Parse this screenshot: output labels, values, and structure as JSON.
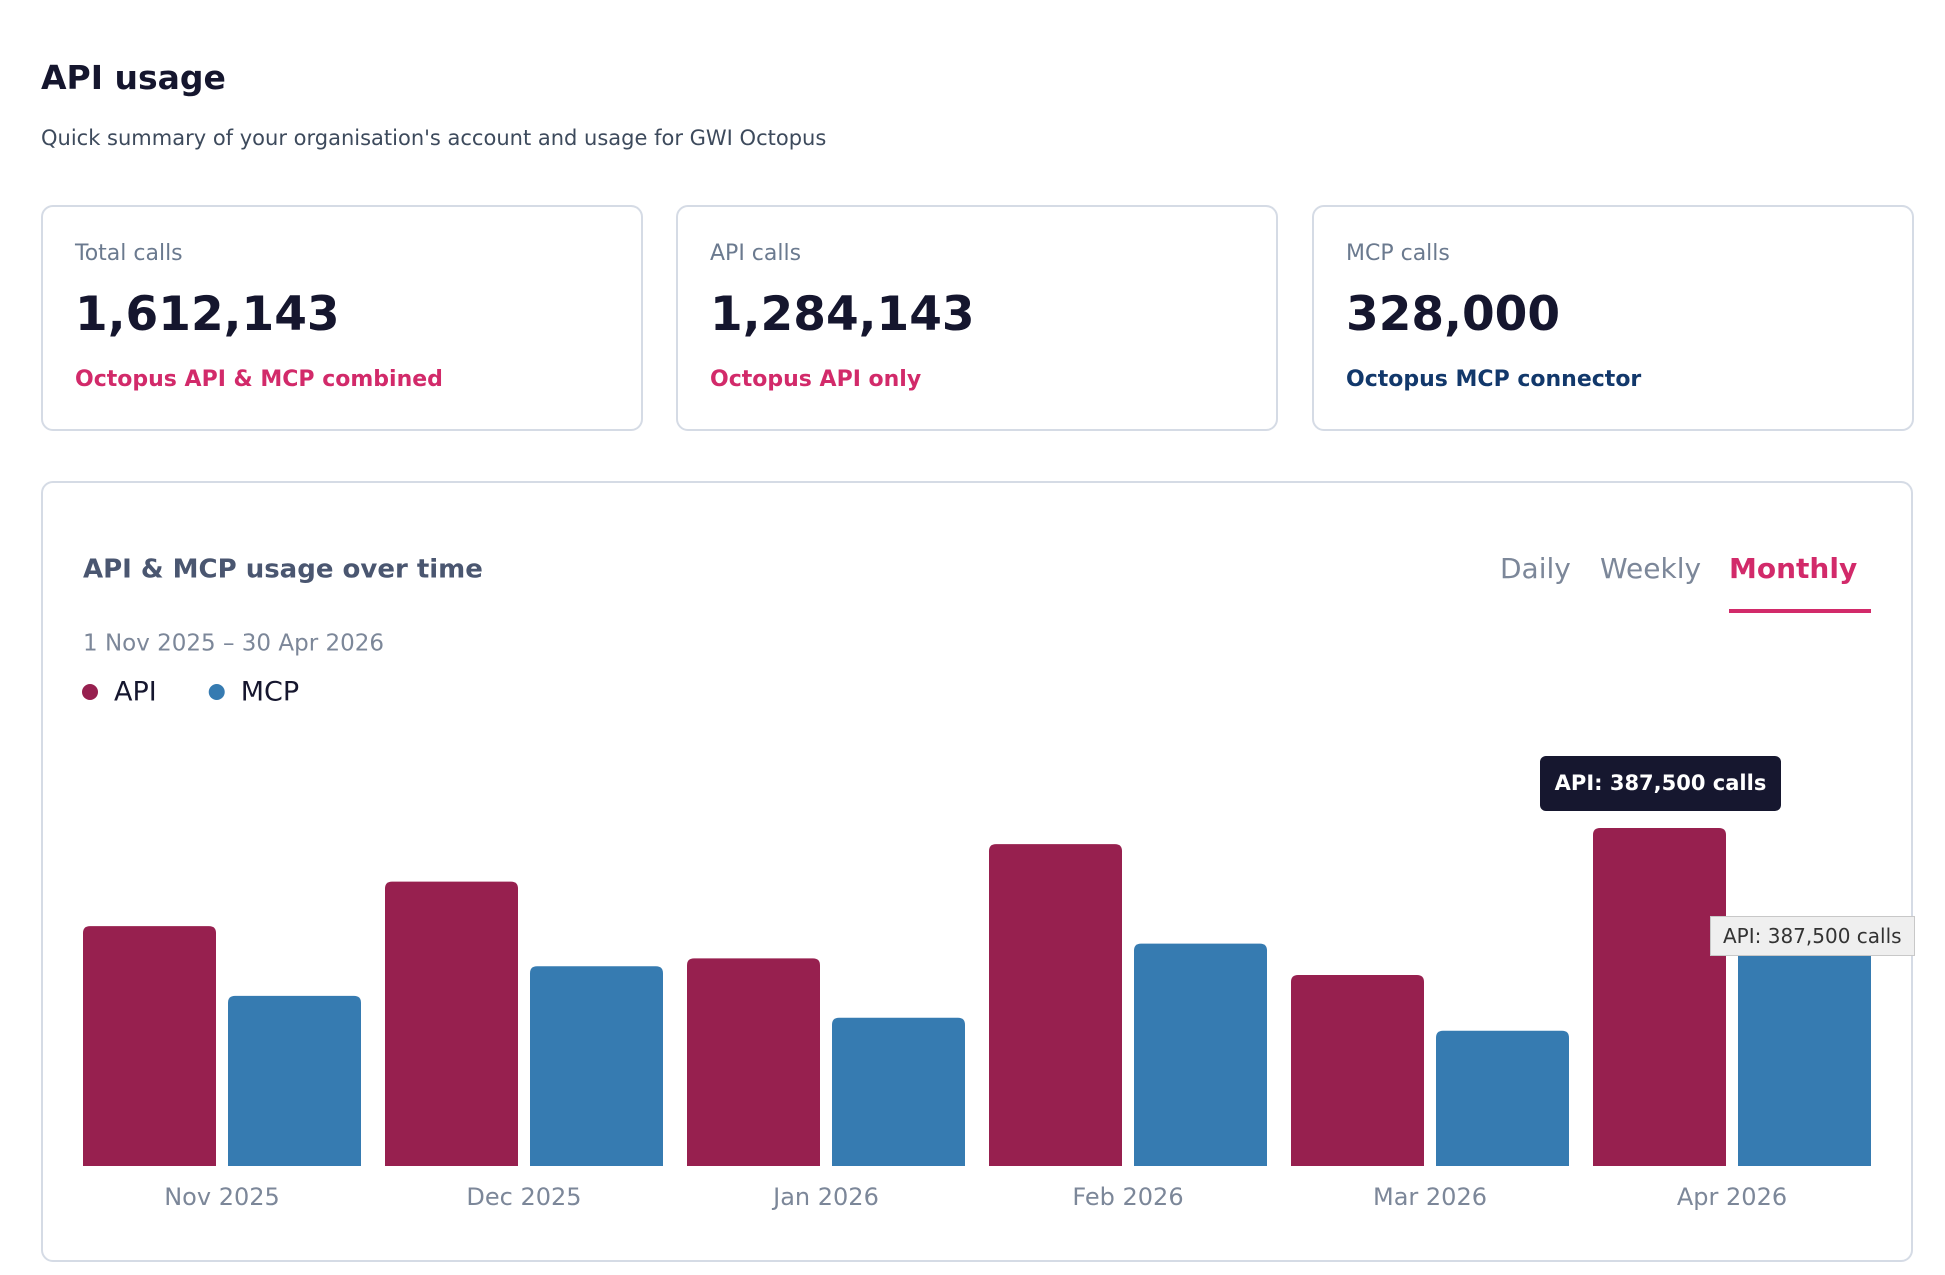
{
  "header": {
    "title": "API usage",
    "subtitle": "Quick summary of your organisation's account and usage for GWI Octopus"
  },
  "cards": [
    {
      "label": "Total calls",
      "value": "1,612,143",
      "note": "Octopus API & MCP combined",
      "note_color": "#d22a6a"
    },
    {
      "label": "API calls",
      "value": "1,284,143",
      "note": "Octopus API only",
      "note_color": "#d22a6a"
    },
    {
      "label": "MCP calls",
      "value": "328,000",
      "note": "Octopus MCP connector",
      "note_color": "#12386b"
    }
  ],
  "chart_data": {
    "type": "bar",
    "title": "API & MCP usage over time",
    "tabs": [
      "Daily",
      "Weekly",
      "Monthly"
    ],
    "active_tab": 2,
    "date_range": "1 Nov 2025 – 30 Apr 2026",
    "categories": [
      "Nov 2025",
      "Dec 2025",
      "Jan 2026",
      "Feb 2026",
      "Mar 2026",
      "Apr 2026"
    ],
    "series": [
      {
        "name": "API",
        "color": "#97204f",
        "values": [
          275000,
          326000,
          238000,
          369000,
          219000,
          387500
        ]
      },
      {
        "name": "MCP",
        "color": "#367bb1",
        "values": [
          195000,
          229000,
          170000,
          255000,
          155000,
          264000
        ]
      }
    ],
    "tooltip": "API: 387,500 calls",
    "hover_title": "API: 387,500 calls"
  }
}
